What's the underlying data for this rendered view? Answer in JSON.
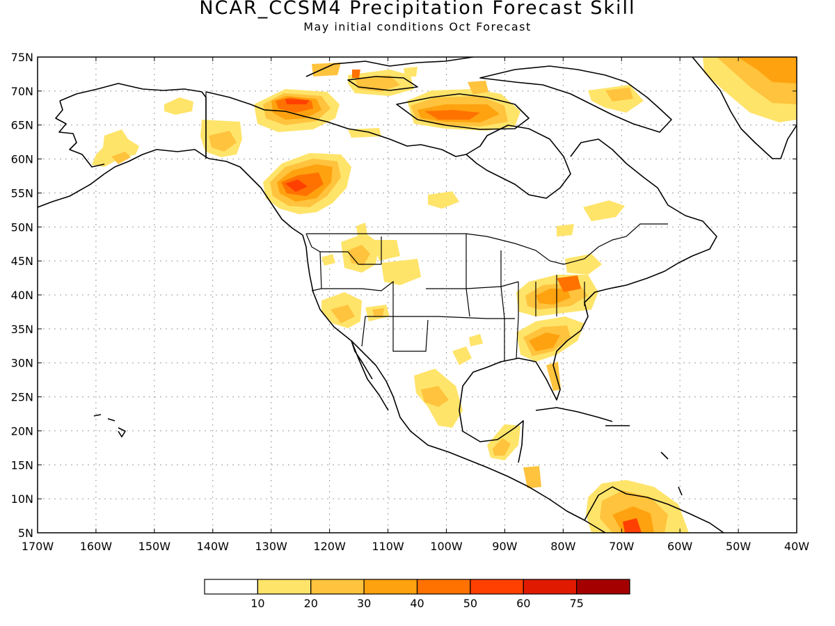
{
  "title": "NCAR_CCSM4 Precipitation Forecast Skill",
  "subtitle": "May initial conditions   Oct Forecast",
  "map": {
    "lat_labels": [
      "75N",
      "70N",
      "65N",
      "60N",
      "55N",
      "50N",
      "45N",
      "40N",
      "35N",
      "30N",
      "25N",
      "20N",
      "15N",
      "10N",
      "5N"
    ],
    "lon_labels": [
      "170W",
      "160W",
      "150W",
      "140W",
      "130W",
      "120W",
      "110W",
      "100W",
      "90W",
      "80W",
      "70W",
      "60W",
      "50W",
      "40W"
    ],
    "grid": true
  },
  "colorbar": {
    "labels": [
      "10",
      "20",
      "30",
      "40",
      "50",
      "60",
      "75"
    ],
    "colors": [
      "#ffffff",
      "#ffe46a",
      "#ffc33d",
      "#ffa20f",
      "#ff7200",
      "#ff4000",
      "#e01a00",
      "#a50000"
    ]
  }
}
